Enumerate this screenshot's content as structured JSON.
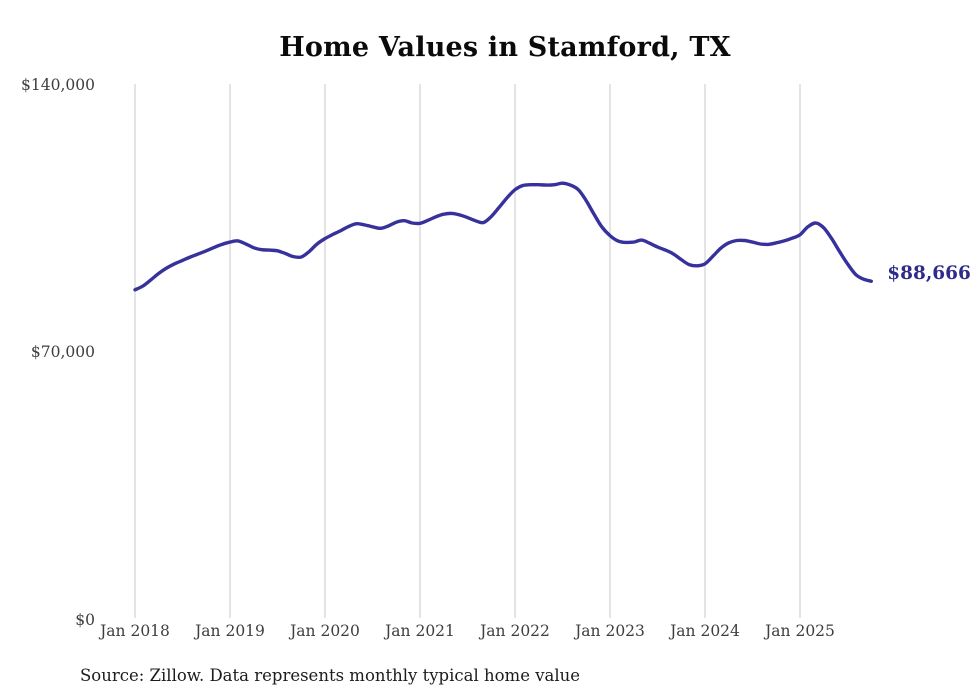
{
  "page": {
    "background": "#ffffff"
  },
  "chart_data": {
    "type": "line",
    "title": "Home Values in Stamford, TX",
    "xlabel": "",
    "ylabel": "",
    "ylim": [
      0,
      140000
    ],
    "grid": "vertical-only",
    "legend": "none",
    "line_color": "#37319b",
    "gridline_color": "#c9c9c9",
    "axis_text_color": "#3e3e3e",
    "end_label_color": "#2f2b8c",
    "x_tick_labels": [
      "Jan 2018",
      "Jan 2019",
      "Jan 2020",
      "Jan 2021",
      "Jan 2022",
      "Jan 2023",
      "Jan 2024",
      "Jan 2025"
    ],
    "y_ticks": [
      {
        "label": "$140,000",
        "value": 140000
      },
      {
        "label": "$70,000",
        "value": 70000
      },
      {
        "label": "$0",
        "value": 0
      }
    ],
    "series": [
      {
        "name": "Monthly typical home value",
        "first_month": "2018-01",
        "last_month": "2025-10",
        "values": [
          86400,
          87400,
          89000,
          90700,
          92100,
          93200,
          94100,
          95000,
          95800,
          96600,
          97500,
          98300,
          98900,
          99200,
          98400,
          97400,
          96900,
          96800,
          96600,
          95900,
          95100,
          95000,
          96400,
          98400,
          99800,
          100900,
          101900,
          103000,
          103700,
          103400,
          102900,
          102500,
          103100,
          104100,
          104500,
          103900,
          103800,
          104600,
          105500,
          106200,
          106400,
          106000,
          105300,
          104500,
          104000,
          105600,
          108000,
          110500,
          112600,
          113700,
          113900,
          113900,
          113800,
          113900,
          114300,
          113800,
          112600,
          109700,
          106100,
          102800,
          100600,
          99200,
          98800,
          98900,
          99400,
          98600,
          97600,
          96800,
          95800,
          94300,
          93000,
          92700,
          93200,
          95200,
          97300,
          98700,
          99300,
          99300,
          98900,
          98400,
          98300,
          98700,
          99200,
          99900,
          100800,
          102900,
          103900,
          102600,
          99800,
          96400,
          93200,
          90500,
          89200,
          88666
        ]
      }
    ],
    "end_value": 88666,
    "end_label": "$88,666",
    "source": "Source: Zillow. Data represents monthly typical home value"
  }
}
